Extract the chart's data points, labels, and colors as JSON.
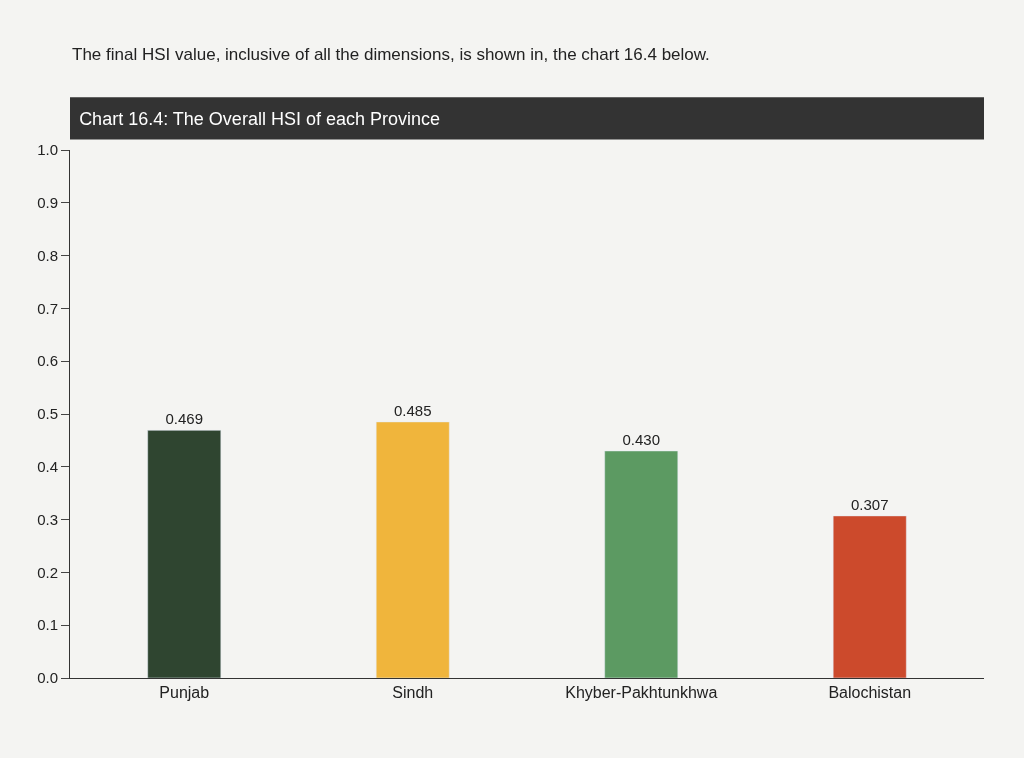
{
  "chart_data": {
    "type": "bar",
    "title": "Chart 16.4: The Overall HSI of each Province",
    "annotations": [
      "The final HSI value, inclusive of all the dimensions, is shown in, the chart 16.4 below."
    ],
    "categories": [
      "Punjab",
      "Sindh",
      "Khyber-Pakhtunkhwa",
      "Balochistan"
    ],
    "values": [
      0.469,
      0.485,
      0.43,
      0.307
    ],
    "value_labels": [
      "0.469",
      "0.485",
      "0.430",
      "0.307"
    ],
    "colors": [
      "#2f4530",
      "#f0b53c",
      "#5c9a62",
      "#cc4a2c"
    ],
    "ylim": [
      0,
      1
    ],
    "yticks": [
      {
        "value": 0,
        "label": "0.0"
      },
      {
        "value": 0.1,
        "label": "0.1"
      },
      {
        "value": 0.2,
        "label": "0.2"
      },
      {
        "value": 0.3,
        "label": "0.3"
      },
      {
        "value": 0.4,
        "label": "0.4"
      },
      {
        "value": 0.5,
        "label": "0.5"
      },
      {
        "value": 0.6,
        "label": "0.6"
      },
      {
        "value": 0.7,
        "label": "0.7"
      },
      {
        "value": 0.8,
        "label": "0.8"
      },
      {
        "value": 0.9,
        "label": "0.9"
      },
      {
        "value": 1,
        "label": "1.0"
      }
    ],
    "grid": false
  }
}
